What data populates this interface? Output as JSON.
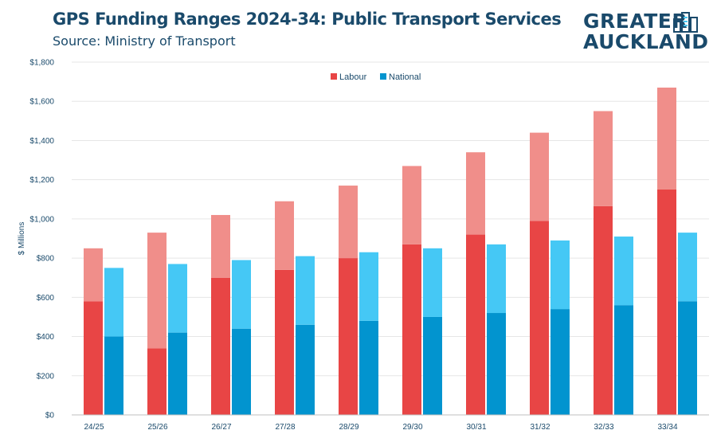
{
  "header": {
    "title": "GPS Funding Ranges 2024-34: Public Transport Services",
    "subtitle": "Source: Ministry of Transport"
  },
  "logo": {
    "line1": "GREATER",
    "line2": "AUCKLAND"
  },
  "colors": {
    "labour_low": "#e84545",
    "labour_high": "#f08e8a",
    "national_low": "#0294cf",
    "national_high": "#45c8f5",
    "text": "#1a4a6b",
    "grid": "#e6e6e6"
  },
  "chart_data": {
    "type": "bar",
    "stacked_ranges": true,
    "categories": [
      "24/25",
      "25/26",
      "26/27",
      "27/28",
      "28/29",
      "29/30",
      "30/31",
      "31/32",
      "32/33",
      "33/34"
    ],
    "series": [
      {
        "name": "Labour",
        "low": [
          580,
          340,
          700,
          740,
          800,
          870,
          920,
          990,
          1065,
          1150
        ],
        "high": [
          850,
          930,
          1020,
          1090,
          1170,
          1270,
          1340,
          1440,
          1550,
          1670
        ]
      },
      {
        "name": "National",
        "low": [
          400,
          420,
          440,
          460,
          480,
          500,
          520,
          540,
          560,
          580
        ],
        "high": [
          750,
          770,
          790,
          810,
          830,
          850,
          870,
          890,
          910,
          930
        ]
      }
    ],
    "ylabel": "$ Millions",
    "ylim": [
      0,
      1800
    ],
    "yticks": [
      "$0",
      "$200",
      "$400",
      "$600",
      "$800",
      "$1,000",
      "$1,200",
      "$1,400",
      "$1,600",
      "$1,800"
    ],
    "grid": true,
    "legend_position": "top-center"
  }
}
